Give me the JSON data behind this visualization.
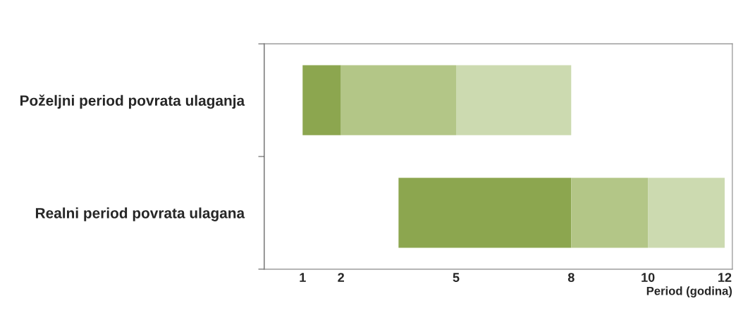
{
  "chart_data": {
    "type": "bar",
    "orientation": "horizontal",
    "categories": [
      "Poželjni period povrata ulaganja",
      "Realni period povrata ulagana"
    ],
    "series": [
      {
        "color": "#8ca64f",
        "base": [
          1,
          3.5
        ],
        "values": [
          1,
          4.5
        ]
      },
      {
        "color": "#b3c687",
        "base": [
          2,
          8
        ],
        "values": [
          3,
          2
        ]
      },
      {
        "color": "#ccdab0",
        "base": [
          5,
          10
        ],
        "values": [
          3,
          2
        ]
      }
    ],
    "xlim": [
      0,
      12.2
    ],
    "xticks": [
      1,
      2,
      5,
      8,
      10,
      12
    ],
    "xlabel": "Period (godina)",
    "grid": false,
    "legend": false
  }
}
